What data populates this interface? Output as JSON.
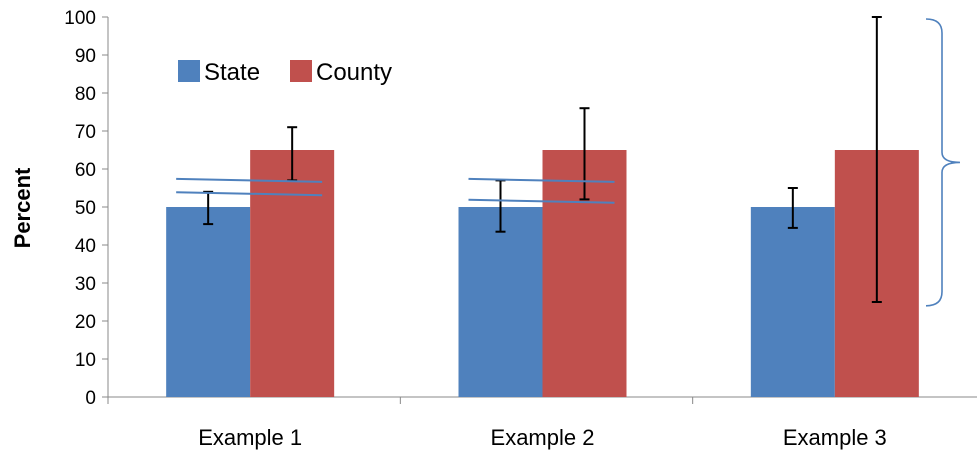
{
  "chart_data": {
    "type": "bar",
    "categories": [
      "Example 1",
      "Example 2",
      "Example 3"
    ],
    "series": [
      {
        "name": "State",
        "color": "#4f81bd",
        "values": [
          50,
          50,
          50
        ],
        "error_low": [
          45.5,
          43.5,
          44.5
        ],
        "error_high": [
          54,
          57,
          55
        ]
      },
      {
        "name": "County",
        "color": "#c0504d",
        "values": [
          65,
          65,
          65
        ],
        "error_low": [
          57,
          52,
          25
        ],
        "error_high": [
          71,
          76,
          100
        ]
      }
    ],
    "ylabel": "Percent",
    "xlabel": "",
    "ylim": [
      0,
      100
    ],
    "yticks": [
      0,
      10,
      20,
      30,
      40,
      50,
      60,
      70,
      80,
      90,
      100
    ],
    "grid": false,
    "legend_position": "top-left",
    "annotations": [
      {
        "type": "overlap-lines",
        "category": "Example 1",
        "y_values": [
          57,
          53.5
        ],
        "color": "#4f81bd"
      },
      {
        "type": "overlap-lines",
        "category": "Example 2",
        "y_values": [
          57,
          51.5
        ],
        "color": "#4f81bd"
      },
      {
        "type": "brace",
        "y_range": [
          24,
          100
        ],
        "color": "#4f81bd"
      }
    ]
  }
}
